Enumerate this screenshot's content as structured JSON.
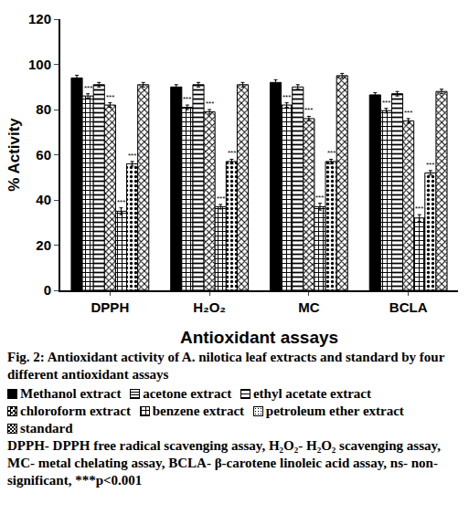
{
  "chart_data": {
    "type": "bar",
    "title": "Fig. 2: Antioxidant activity of A. nilotica leaf extracts and standard by four different antioxidant assays",
    "subtitle": "DPPH- DPPH free radical scavenging assay, H₂O₂- H₂O₂ scavenging assay, MC- metal chelating assay, BCLA- β-carotene linoleic acid assay, ns- non-significant, ***p<0.001",
    "x_label": "Antioxidant assays",
    "y_label": "% Activity",
    "categories": [
      "DPPH",
      "H₂O₂",
      "MC",
      "BCLA"
    ],
    "series": [
      {
        "name": "Methanol extract",
        "color": "#000000",
        "marker": "solid",
        "values": [
          94,
          90,
          92,
          86.5
        ],
        "errors": [
          1.2,
          1,
          1.2,
          1
        ]
      },
      {
        "name": "acetone extract",
        "color": "#000000",
        "marker": "brick",
        "values": [
          86,
          81,
          82,
          79.5
        ],
        "errors": [
          1,
          1,
          1,
          1
        ],
        "annotation": "***"
      },
      {
        "name": "ethyl acetate extract",
        "color": "#000000",
        "marker": "hlines",
        "values": [
          91,
          91,
          90,
          87
        ],
        "errors": [
          1,
          1,
          1,
          1
        ]
      },
      {
        "name": "chloroform extract",
        "color": "#000000",
        "marker": "checker",
        "values": [
          82,
          79,
          76,
          75
        ],
        "errors": [
          1,
          1,
          1,
          1
        ],
        "annotation": "***"
      },
      {
        "name": "benzene extract",
        "color": "#000000",
        "marker": "grid",
        "values": [
          35,
          37,
          37,
          32
        ],
        "errors": [
          1.5,
          1,
          1.5,
          1.5
        ],
        "annotation": "***"
      },
      {
        "name": "petroleum ether extract",
        "color": "#000000",
        "marker": "dots",
        "values": [
          56,
          57,
          57,
          52
        ],
        "errors": [
          1,
          1,
          1,
          1
        ],
        "annotation": "***"
      },
      {
        "name": "standard",
        "color": "#000000",
        "marker": "checker2",
        "values": [
          91,
          91,
          95,
          88
        ],
        "errors": [
          1,
          1,
          1,
          1
        ]
      }
    ],
    "ylim": [
      0,
      120
    ],
    "yticks": [
      0,
      20,
      40,
      60,
      80,
      100,
      120
    ],
    "grid": false,
    "legend": "bottom"
  }
}
